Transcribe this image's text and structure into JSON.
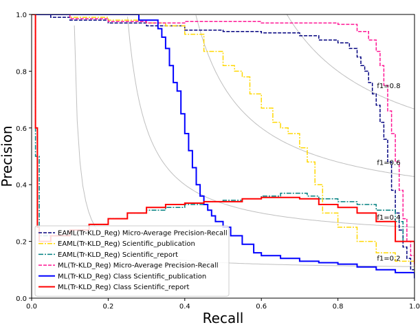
{
  "chart_data": {
    "type": "line",
    "xlabel": "Recall",
    "ylabel": "Precision",
    "xlim": [
      0.0,
      1.0
    ],
    "ylim": [
      0.0,
      1.0
    ],
    "x_ticks": [
      "0.0",
      "0.2",
      "0.4",
      "0.6",
      "0.8",
      "1.0"
    ],
    "y_ticks": [
      "0.0",
      "0.2",
      "0.4",
      "0.6",
      "0.8",
      "1.0"
    ],
    "grid": false,
    "legend_position": "lower-left",
    "iso_f1_labels": [
      "f1=0.8",
      "f1=0.6",
      "f1=0.4",
      "f1=0.2"
    ],
    "iso_f1_values": [
      0.8,
      0.6,
      0.4,
      0.2
    ],
    "series": [
      {
        "name": "EAML(Tr-KLD_Reg) Micro-Average Precision-Recall",
        "color": "#00007f",
        "dash": "dashed",
        "x": [
          0,
          0.05,
          0.1,
          0.2,
          0.3,
          0.4,
          0.5,
          0.6,
          0.7,
          0.75,
          0.8,
          0.83,
          0.85,
          0.86,
          0.87,
          0.88,
          0.89,
          0.9,
          0.91,
          0.92,
          0.93,
          0.94,
          0.95,
          0.96,
          0.97,
          0.98,
          0.99,
          1.0
        ],
        "y": [
          1.0,
          0.99,
          0.98,
          0.97,
          0.96,
          0.945,
          0.94,
          0.935,
          0.925,
          0.91,
          0.9,
          0.88,
          0.85,
          0.82,
          0.8,
          0.76,
          0.72,
          0.68,
          0.62,
          0.56,
          0.48,
          0.38,
          0.3,
          0.24,
          0.18,
          0.14,
          0.1,
          0.08
        ]
      },
      {
        "name": "EAML(Tr-KLD_Reg) Scientific_publication",
        "color": "#ffd700",
        "dash": "dashdot",
        "x": [
          0,
          0.1,
          0.2,
          0.3,
          0.35,
          0.4,
          0.45,
          0.5,
          0.53,
          0.55,
          0.57,
          0.6,
          0.63,
          0.65,
          0.67,
          0.7,
          0.72,
          0.74,
          0.76,
          0.8,
          0.85,
          0.9,
          0.95,
          1.0
        ],
        "y": [
          1.0,
          0.99,
          0.98,
          0.97,
          0.96,
          0.93,
          0.87,
          0.82,
          0.8,
          0.78,
          0.72,
          0.67,
          0.62,
          0.6,
          0.58,
          0.53,
          0.48,
          0.4,
          0.3,
          0.25,
          0.2,
          0.16,
          0.13,
          0.08
        ]
      },
      {
        "name": "EAML(Tr-KLD_Reg) Scientific_report",
        "color": "#008080",
        "dash": "dashdot",
        "x": [
          0,
          0.01,
          0.02,
          0.05,
          0.1,
          0.15,
          0.2,
          0.25,
          0.3,
          0.35,
          0.4,
          0.45,
          0.5,
          0.55,
          0.6,
          0.65,
          0.7,
          0.72,
          0.75,
          0.8,
          0.85,
          0.9,
          0.95,
          0.97,
          1.0
        ],
        "y": [
          1.0,
          0.5,
          0.22,
          0.22,
          0.24,
          0.26,
          0.28,
          0.3,
          0.31,
          0.32,
          0.33,
          0.34,
          0.345,
          0.35,
          0.36,
          0.37,
          0.37,
          0.36,
          0.35,
          0.34,
          0.33,
          0.31,
          0.27,
          0.2,
          0.1
        ]
      },
      {
        "name": "ML(Tr-KLD_Reg) Micro-Average Precision-Recall",
        "color": "#ff1493",
        "dash": "dashed",
        "x": [
          0,
          0.1,
          0.2,
          0.3,
          0.4,
          0.5,
          0.6,
          0.7,
          0.8,
          0.85,
          0.88,
          0.9,
          0.91,
          0.92,
          0.93,
          0.94,
          0.95,
          0.96,
          0.97,
          0.98,
          0.99,
          1.0
        ],
        "y": [
          1.0,
          0.985,
          0.975,
          0.97,
          0.975,
          0.975,
          0.97,
          0.97,
          0.965,
          0.94,
          0.91,
          0.87,
          0.82,
          0.75,
          0.66,
          0.58,
          0.48,
          0.38,
          0.28,
          0.2,
          0.15,
          0.11
        ]
      },
      {
        "name": "ML(Tr-KLD_Reg) Class Scientific_publication",
        "color": "#0000ff",
        "dash": "solid",
        "x": [
          0,
          0.27,
          0.28,
          0.3,
          0.32,
          0.33,
          0.34,
          0.35,
          0.36,
          0.37,
          0.38,
          0.39,
          0.4,
          0.41,
          0.42,
          0.43,
          0.44,
          0.45,
          0.46,
          0.47,
          0.48,
          0.5,
          0.52,
          0.55,
          0.58,
          0.6,
          0.65,
          0.7,
          0.75,
          0.8,
          0.85,
          0.9,
          0.95,
          1.0
        ],
        "y": [
          1.0,
          1.0,
          0.98,
          0.98,
          0.98,
          0.95,
          0.92,
          0.88,
          0.82,
          0.76,
          0.73,
          0.65,
          0.58,
          0.52,
          0.46,
          0.4,
          0.36,
          0.33,
          0.31,
          0.29,
          0.27,
          0.25,
          0.22,
          0.19,
          0.16,
          0.15,
          0.14,
          0.13,
          0.125,
          0.12,
          0.11,
          0.1,
          0.09,
          0.07
        ]
      },
      {
        "name": "ML(Tr-KLD_Reg) Class Scientific_report",
        "color": "#ff0000",
        "dash": "solid",
        "x": [
          0,
          0.01,
          0.015,
          0.02,
          0.05,
          0.1,
          0.15,
          0.2,
          0.25,
          0.3,
          0.35,
          0.4,
          0.45,
          0.5,
          0.55,
          0.6,
          0.65,
          0.7,
          0.75,
          0.8,
          0.85,
          0.9,
          0.95,
          1.0
        ],
        "y": [
          1.0,
          0.6,
          0.25,
          0.2,
          0.22,
          0.24,
          0.26,
          0.28,
          0.3,
          0.32,
          0.33,
          0.335,
          0.34,
          0.34,
          0.35,
          0.355,
          0.355,
          0.35,
          0.33,
          0.32,
          0.3,
          0.27,
          0.2,
          0.12
        ]
      }
    ]
  }
}
